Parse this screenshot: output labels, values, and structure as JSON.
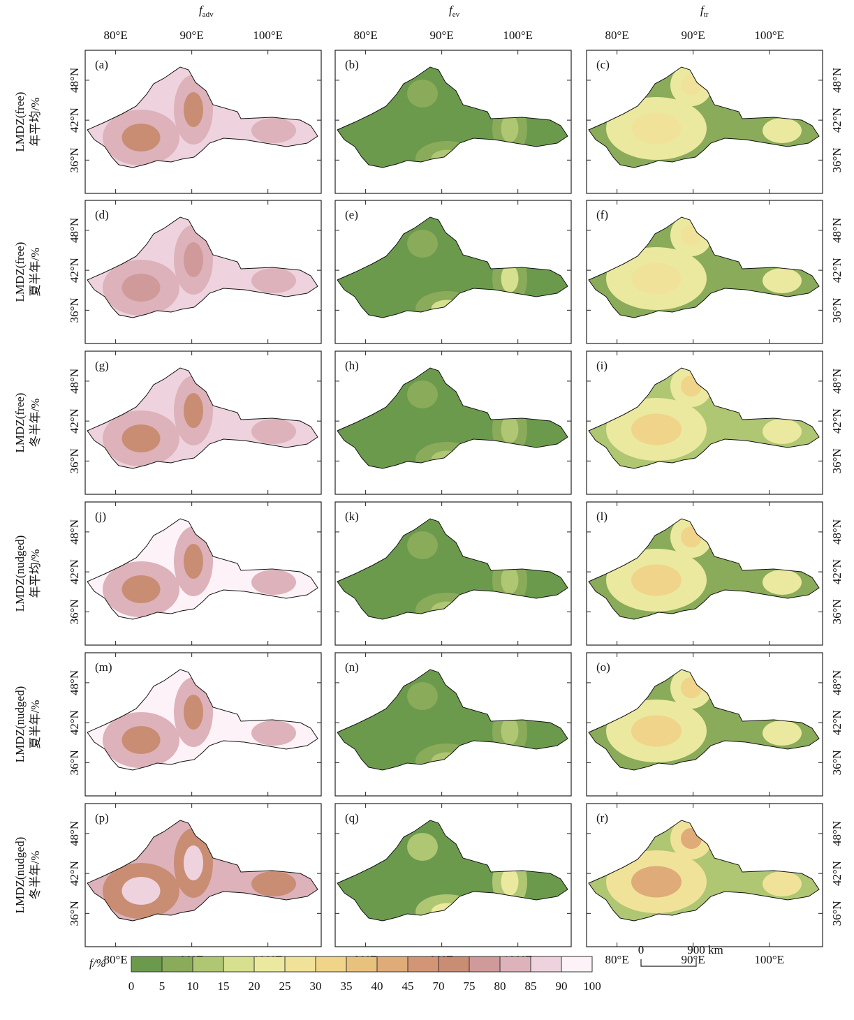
{
  "chart_data": {
    "type": "contour-map-grid",
    "columns": [
      {
        "symbol": "f",
        "subscript": "adv"
      },
      {
        "symbol": "f",
        "subscript": "ev"
      },
      {
        "symbol": "f",
        "subscript": "tr"
      }
    ],
    "xticks": [
      {
        "value": 80,
        "label": "80°E"
      },
      {
        "value": 90,
        "label": "90°E"
      },
      {
        "value": 100,
        "label": "100°E"
      }
    ],
    "yticks": [
      {
        "value": 36,
        "label": "36°N"
      },
      {
        "value": 42,
        "label": "42°N"
      },
      {
        "value": 48,
        "label": "48°N"
      }
    ],
    "xlim": [
      76,
      107
    ],
    "ylim": [
      31,
      52.5
    ],
    "rows": [
      {
        "label": "LMDZ(free)",
        "period": "年平均/%",
        "panels": [
          {
            "letter": "(a)",
            "values": [
              87.5,
              82.5,
              72.5
            ]
          },
          {
            "letter": "(b)",
            "values": [
              2.5,
              7.5,
              12.5
            ]
          },
          {
            "letter": "(c)",
            "values": [
              7.5,
              22.5,
              27.5
            ]
          }
        ]
      },
      {
        "label": "LMDZ(free)",
        "period": "夏半年/%",
        "panels": [
          {
            "letter": "(d)",
            "values": [
              87.5,
              82.5,
              77.5
            ]
          },
          {
            "letter": "(e)",
            "values": [
              2.5,
              7.5,
              17.5
            ]
          },
          {
            "letter": "(f)",
            "values": [
              7.5,
              22.5,
              27.5
            ]
          }
        ]
      },
      {
        "label": "LMDZ(free)",
        "period": "冬半年/%",
        "panels": [
          {
            "letter": "(g)",
            "values": [
              87.5,
              82.5,
              72.5
            ]
          },
          {
            "letter": "(h)",
            "values": [
              2.5,
              7.5,
              12.5
            ]
          },
          {
            "letter": "(i)",
            "values": [
              12.5,
              22.5,
              32.5
            ]
          }
        ]
      },
      {
        "label": "LMDZ(nudged)",
        "period": "年平均/%",
        "panels": [
          {
            "letter": "(j)",
            "values": [
              92.5,
              82.5,
              72.5
            ]
          },
          {
            "letter": "(k)",
            "values": [
              2.5,
              7.5,
              12.5
            ]
          },
          {
            "letter": "(l)",
            "values": [
              7.5,
              22.5,
              32.5
            ]
          }
        ]
      },
      {
        "label": "LMDZ(nudged)",
        "period": "夏半年/%",
        "panels": [
          {
            "letter": "(m)",
            "values": [
              92.5,
              82.5,
              72.5
            ]
          },
          {
            "letter": "(n)",
            "values": [
              2.5,
              7.5,
              12.5
            ]
          },
          {
            "letter": "(o)",
            "values": [
              7.5,
              22.5,
              32.5
            ]
          }
        ]
      },
      {
        "label": "LMDZ(nudged)",
        "period": "冬半年/%",
        "panels": [
          {
            "letter": "(p)",
            "values": [
              82.5,
              72.5,
              87.5
            ]
          },
          {
            "letter": "(q)",
            "values": [
              2.5,
              12.5,
              22.5
            ]
          },
          {
            "letter": "(r)",
            "values": [
              12.5,
              27.5,
              42.5
            ]
          }
        ]
      }
    ],
    "colorbar": {
      "label": "f/%",
      "levels": [
        0,
        5,
        10,
        15,
        20,
        25,
        30,
        35,
        40,
        45,
        70,
        75,
        80,
        85,
        90,
        100
      ],
      "colors": [
        "#6b9a4d",
        "#8aab5a",
        "#afc673",
        "#d6e08e",
        "#ebe99f",
        "#f1e29a",
        "#efd489",
        "#e8c27d",
        "#dfab78",
        "#d29677",
        "#c98d74",
        "#d09a9a",
        "#ddb2ba",
        "#eed3de",
        "#fcf2f7"
      ]
    },
    "scalebar": {
      "start": "0",
      "end": "900 km"
    }
  }
}
